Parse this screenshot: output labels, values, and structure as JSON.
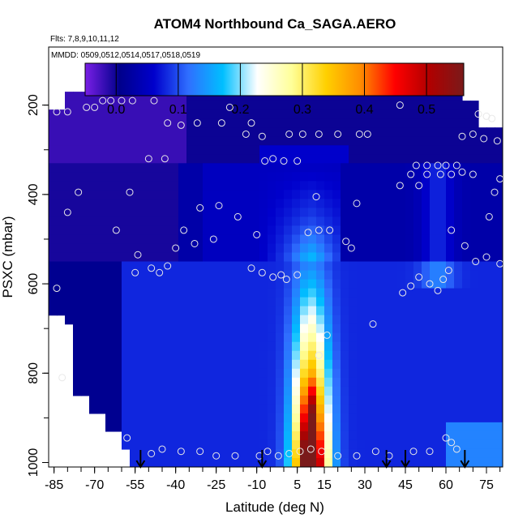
{
  "chart_data": {
    "type": "heatmap",
    "title": "ATOM4 Northbound Ca_SAGA.AERO",
    "flights_note": "Flts: 7,8,9,10,11,12",
    "dates_note": "MMDD: 0509,0512,0514,0517,0518,0519",
    "xlabel": "Latitude (deg N)",
    "ylabel": "PSXC (mbar)",
    "xlim": [
      -87,
      81
    ],
    "ylim": [
      1010,
      70
    ],
    "y_reversed": true,
    "x_ticks": [
      "-85",
      "-70",
      "-55",
      "-40",
      "-25",
      "-10",
      "5",
      "15",
      "30",
      "45",
      "60",
      "75"
    ],
    "x_tick_values": [
      -85,
      -70,
      -55,
      -40,
      -25,
      -10,
      5,
      15,
      30,
      45,
      60,
      75
    ],
    "y_ticks": [
      "200",
      "400",
      "600",
      "800",
      "1000"
    ],
    "y_tick_values": [
      200,
      400,
      600,
      800,
      1000
    ],
    "colorbar": {
      "min": -0.05,
      "max": 0.56,
      "ticks": [
        "0.0",
        "0.1",
        "0.2",
        "0.3",
        "0.4",
        "0.5"
      ],
      "tick_values": [
        0.0,
        0.1,
        0.2,
        0.3,
        0.4,
        0.5
      ],
      "colors": [
        "#7a1fe6",
        "#00008b",
        "#0000cc",
        "#2f6fff",
        "#00bfff",
        "#ffffff",
        "#ffff99",
        "#ffd000",
        "#ff8c00",
        "#ff0000",
        "#b00000",
        "#7a1a1a"
      ]
    },
    "grid": false,
    "arrow_latitudes": [
      -53,
      -8,
      38,
      45,
      67
    ],
    "sample_points": [
      {
        "lat": -84,
        "p": 215
      },
      {
        "lat": -80,
        "p": 215
      },
      {
        "lat": -73,
        "p": 205
      },
      {
        "lat": -70,
        "p": 205
      },
      {
        "lat": -67,
        "p": 190
      },
      {
        "lat": -64,
        "p": 190
      },
      {
        "lat": -60,
        "p": 190
      },
      {
        "lat": -56,
        "p": 190
      },
      {
        "lat": -48,
        "p": 190
      },
      {
        "lat": -43,
        "p": 240
      },
      {
        "lat": -38,
        "p": 245
      },
      {
        "lat": -32,
        "p": 240
      },
      {
        "lat": -23,
        "p": 240
      },
      {
        "lat": -20,
        "p": 205
      },
      {
        "lat": -12,
        "p": 240
      },
      {
        "lat": -14,
        "p": 265
      },
      {
        "lat": -8,
        "p": 270
      },
      {
        "lat": 2,
        "p": 265
      },
      {
        "lat": 7,
        "p": 265
      },
      {
        "lat": 13,
        "p": 265
      },
      {
        "lat": 20,
        "p": 265
      },
      {
        "lat": 28,
        "p": 265
      },
      {
        "lat": 31,
        "p": 265
      },
      {
        "lat": 43,
        "p": 200
      },
      {
        "lat": 72,
        "p": 220
      },
      {
        "lat": 75,
        "p": 225
      },
      {
        "lat": 77,
        "p": 230
      },
      {
        "lat": 66,
        "p": 270
      },
      {
        "lat": 70,
        "p": 265
      },
      {
        "lat": 74,
        "p": 275
      },
      {
        "lat": 79,
        "p": 280
      },
      {
        "lat": -80,
        "p": 440
      },
      {
        "lat": -76,
        "p": 395
      },
      {
        "lat": -62,
        "p": 480
      },
      {
        "lat": -57,
        "p": 395
      },
      {
        "lat": -50,
        "p": 320
      },
      {
        "lat": -44,
        "p": 320
      },
      {
        "lat": -37,
        "p": 480
      },
      {
        "lat": -31,
        "p": 430
      },
      {
        "lat": -24,
        "p": 425
      },
      {
        "lat": -17,
        "p": 450
      },
      {
        "lat": -26,
        "p": 500
      },
      {
        "lat": -33,
        "p": 510
      },
      {
        "lat": -10,
        "p": 490
      },
      {
        "lat": -7,
        "p": 325
      },
      {
        "lat": -4,
        "p": 320
      },
      {
        "lat": 0,
        "p": 325
      },
      {
        "lat": 5,
        "p": 325
      },
      {
        "lat": 12,
        "p": 405
      },
      {
        "lat": 27,
        "p": 420
      },
      {
        "lat": 43,
        "p": 380
      },
      {
        "lat": 47,
        "p": 355
      },
      {
        "lat": 50,
        "p": 380
      },
      {
        "lat": 53,
        "p": 355
      },
      {
        "lat": 58,
        "p": 355
      },
      {
        "lat": 62,
        "p": 355
      },
      {
        "lat": 66,
        "p": 350
      },
      {
        "lat": 70,
        "p": 355
      },
      {
        "lat": 49,
        "p": 335
      },
      {
        "lat": 53,
        "p": 335
      },
      {
        "lat": 57,
        "p": 335
      },
      {
        "lat": 60,
        "p": 335
      },
      {
        "lat": 64,
        "p": 335
      },
      {
        "lat": 80,
        "p": 365
      },
      {
        "lat": 78,
        "p": 395
      },
      {
        "lat": 76,
        "p": 450
      },
      {
        "lat": 75,
        "p": 540
      },
      {
        "lat": 71,
        "p": 550
      },
      {
        "lat": 67,
        "p": 515
      },
      {
        "lat": 62,
        "p": 480
      },
      {
        "lat": -54,
        "p": 535
      },
      {
        "lat": -49,
        "p": 565
      },
      {
        "lat": -43,
        "p": 560
      },
      {
        "lat": -40,
        "p": 520
      },
      {
        "lat": -46,
        "p": 575
      },
      {
        "lat": -8,
        "p": 575
      },
      {
        "lat": -1,
        "p": 580
      },
      {
        "lat": 5,
        "p": 580
      },
      {
        "lat": 9,
        "p": 485
      },
      {
        "lat": 13,
        "p": 480
      },
      {
        "lat": 17,
        "p": 480
      },
      {
        "lat": 23,
        "p": 505
      },
      {
        "lat": 25,
        "p": 520
      },
      {
        "lat": -12,
        "p": 565
      },
      {
        "lat": -4,
        "p": 585
      },
      {
        "lat": 1,
        "p": 590
      },
      {
        "lat": 44,
        "p": 620
      },
      {
        "lat": 47,
        "p": 605
      },
      {
        "lat": 50,
        "p": 585
      },
      {
        "lat": 54,
        "p": 600
      },
      {
        "lat": 57,
        "p": 615
      },
      {
        "lat": 59,
        "p": 590
      },
      {
        "lat": 61,
        "p": 570
      },
      {
        "lat": 80,
        "p": 555
      },
      {
        "lat": 33,
        "p": 690
      },
      {
        "lat": -84,
        "p": 610
      },
      {
        "lat": -82,
        "p": 810
      },
      {
        "lat": -55,
        "p": 575
      },
      {
        "lat": 13,
        "p": 760
      },
      {
        "lat": 16,
        "p": 715
      },
      {
        "lat": -58,
        "p": 945
      },
      {
        "lat": -49,
        "p": 980
      },
      {
        "lat": -45,
        "p": 970
      },
      {
        "lat": -38,
        "p": 975
      },
      {
        "lat": -31,
        "p": 975
      },
      {
        "lat": -25,
        "p": 985
      },
      {
        "lat": -18,
        "p": 985
      },
      {
        "lat": -9,
        "p": 985
      },
      {
        "lat": -6,
        "p": 975
      },
      {
        "lat": -2,
        "p": 985
      },
      {
        "lat": 2,
        "p": 980
      },
      {
        "lat": 6,
        "p": 975
      },
      {
        "lat": 10,
        "p": 970
      },
      {
        "lat": 14,
        "p": 975
      },
      {
        "lat": 20,
        "p": 985
      },
      {
        "lat": 27,
        "p": 985
      },
      {
        "lat": 34,
        "p": 975
      },
      {
        "lat": 39,
        "p": 985
      },
      {
        "lat": 48,
        "p": 975
      },
      {
        "lat": 54,
        "p": 975
      },
      {
        "lat": 60,
        "p": 945
      },
      {
        "lat": 62,
        "p": 955
      },
      {
        "lat": 64,
        "p": 970
      }
    ]
  }
}
